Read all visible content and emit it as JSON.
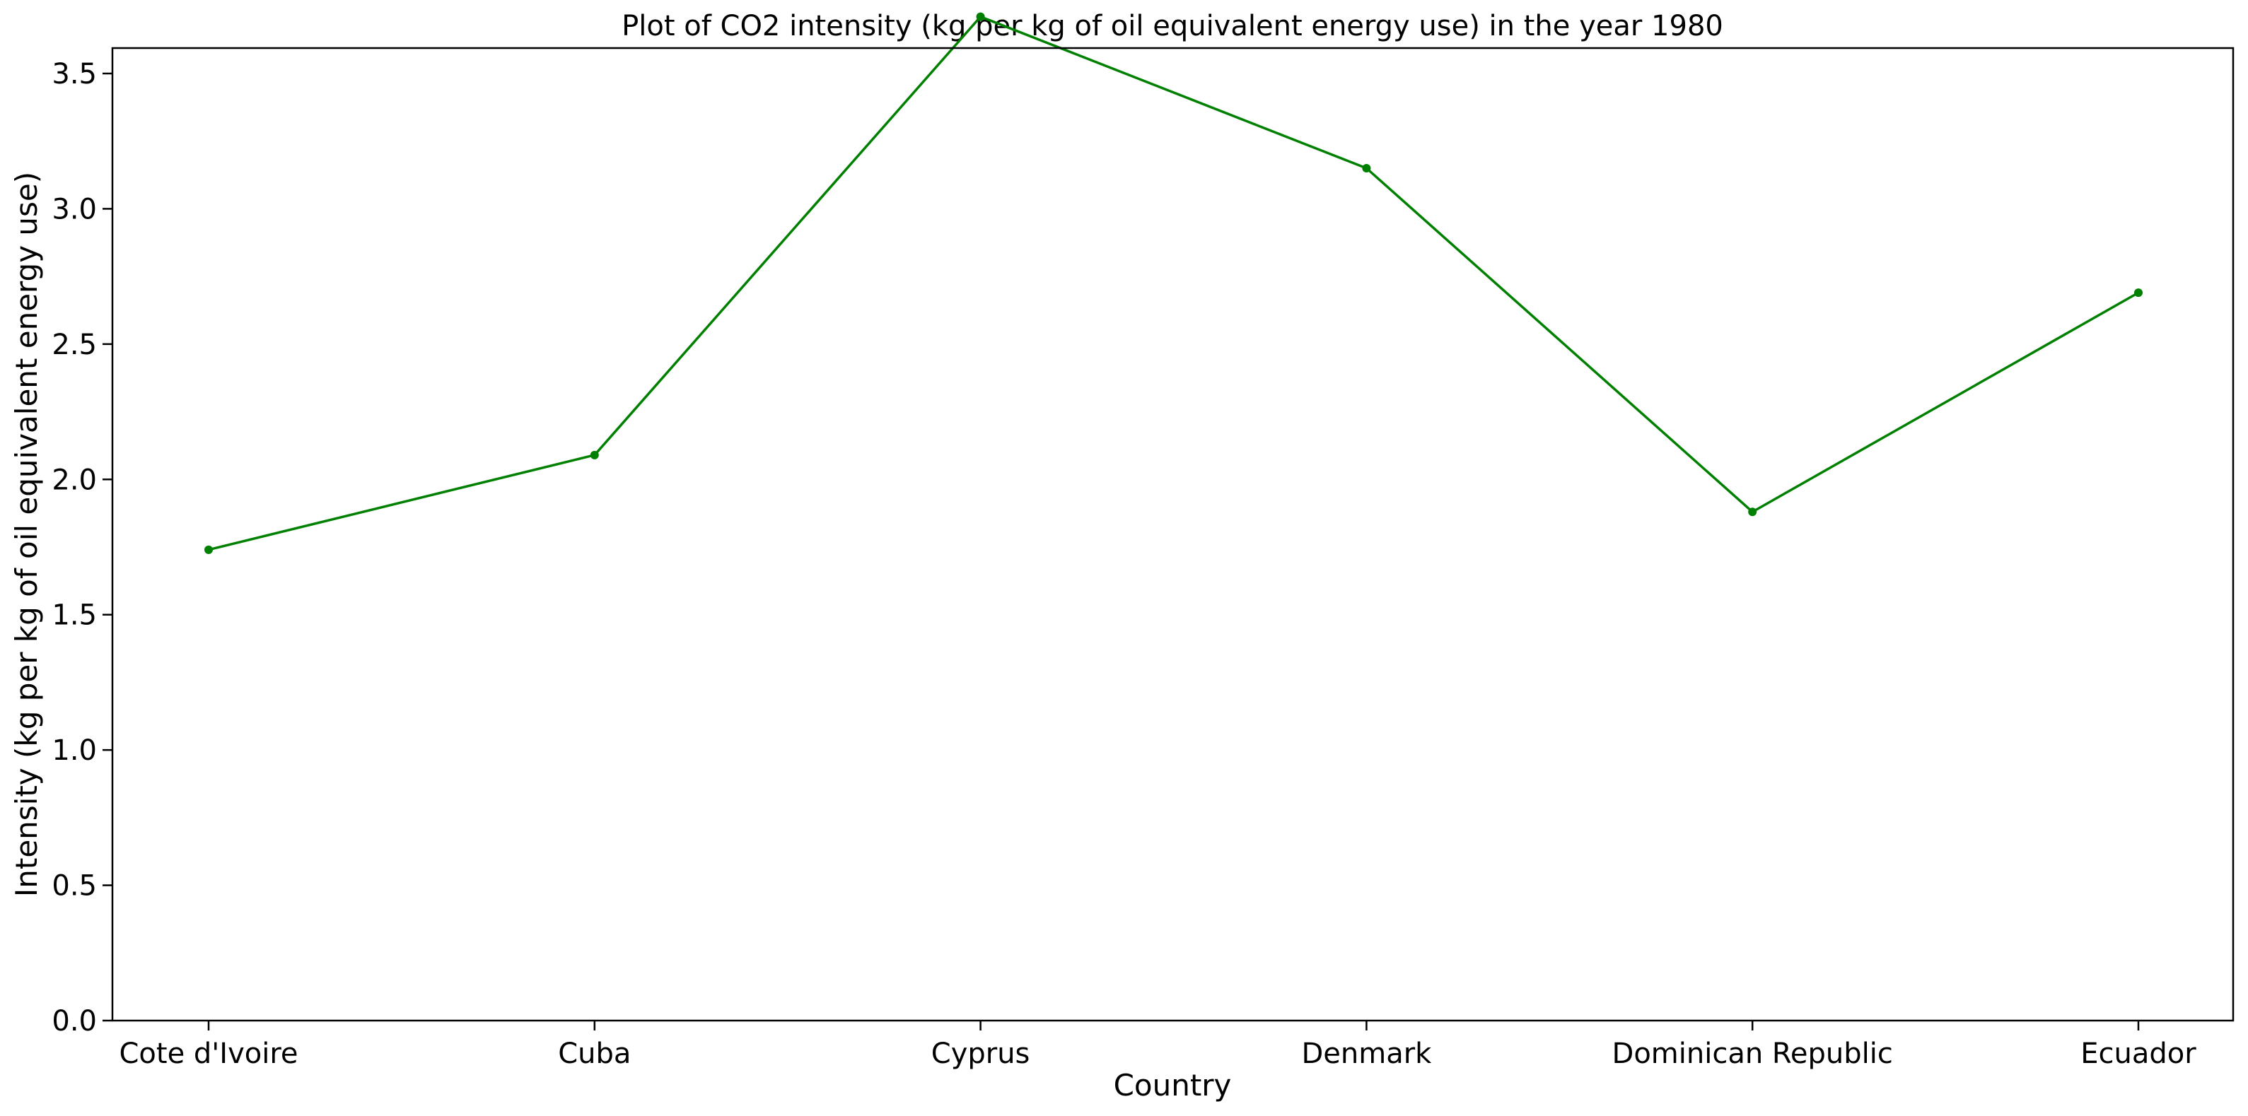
{
  "chart_data": {
    "type": "line",
    "title": "Plot of CO2 intensity (kg per kg of oil equivalent energy use) in the year 1980",
    "xlabel": "Country",
    "ylabel": "Intensity (kg per kg of oil equivalent energy use)",
    "categories": [
      "Cote d'Ivoire",
      "Cuba",
      "Cyprus",
      "Denmark",
      "Dominican Republic",
      "Ecuador"
    ],
    "series": [
      {
        "values": [
          1.74,
          2.09,
          3.71,
          3.15,
          1.88,
          2.69
        ],
        "color": "#008000",
        "marker": "circle"
      }
    ],
    "ylim": [
      0,
      3.8
    ],
    "yticks": [
      0.0,
      0.5,
      1.0,
      1.5,
      2.0,
      2.5,
      3.0,
      3.5
    ],
    "ytick_labels": [
      "0.0",
      "0.5",
      "1.0",
      "1.5",
      "2.0",
      "2.5",
      "3.0",
      "3.5"
    ],
    "grid": false,
    "legend": "none"
  }
}
